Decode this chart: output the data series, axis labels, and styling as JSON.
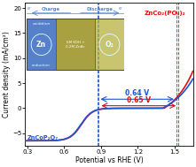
{
  "title": "",
  "xlabel": "Potential vs RHE (V)",
  "ylabel": "Current density (mA/cm²)",
  "xlim": [
    0.28,
    1.65
  ],
  "ylim": [
    -7.5,
    21
  ],
  "yticks": [
    -5,
    0,
    5,
    10,
    15,
    20
  ],
  "xticks": [
    0.3,
    0.6,
    0.9,
    1.2,
    1.5
  ],
  "blue_label": "ZnCoP₂O₇",
  "red_label": "ZnCo₂(PO₄)₂",
  "blue_color": "#1a55d4",
  "red_color": "#e01010",
  "blue_orr": 0.875,
  "blue_oer": 1.515,
  "red_orr": 0.882,
  "red_oer": 1.532,
  "blue_gap_label": "0.64 V",
  "red_gap_label": "0.65 V",
  "background_color": "#ffffff"
}
